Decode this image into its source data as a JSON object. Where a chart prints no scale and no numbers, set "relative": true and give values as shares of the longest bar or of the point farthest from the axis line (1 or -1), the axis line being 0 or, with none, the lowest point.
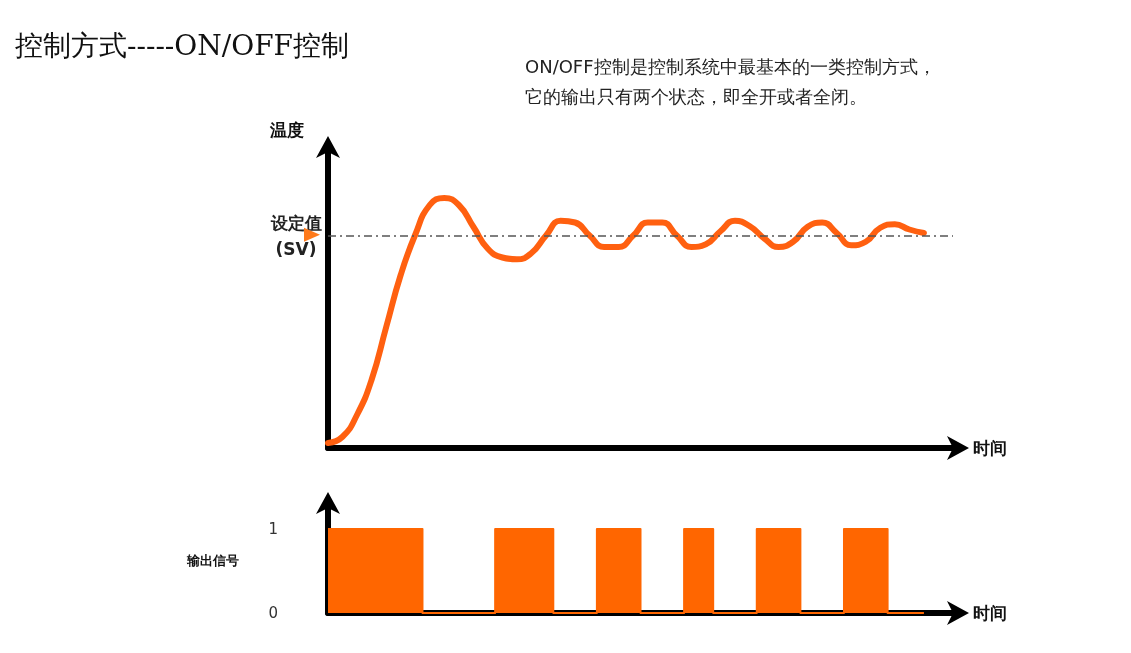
{
  "chart_data": [
    {
      "type": "line",
      "title": "控制方式-----ON/OFF控制",
      "subtitle": "ON/OFF控制是控制系统中最基本的一类控制方式，它的输出只有两个状态，即全开或者全闭。",
      "ylabel": "温度",
      "xlabel": "时间",
      "relative": true,
      "marker": "none",
      "grid": false,
      "categories": [
        null,
        null,
        null,
        null,
        null,
        null,
        null,
        null,
        null,
        null,
        null,
        null,
        null,
        null,
        null,
        null,
        null,
        null,
        null,
        null,
        null,
        null,
        null,
        null,
        null,
        null,
        null,
        null,
        null,
        null,
        null,
        null,
        null,
        null,
        null,
        null,
        null,
        null,
        null,
        null,
        null,
        null
      ],
      "series": [
        {
          "color": "#ff6010",
          "values": [
            0.02,
            0.045,
            0.133,
            0.273,
            0.483,
            0.692,
            0.853,
            0.972,
            1.0,
            0.972,
            0.885,
            0.797,
            0.762,
            0.755,
            0.78,
            0.85,
            0.909,
            0.902,
            0.85,
            0.804,
            0.804,
            0.85,
            0.902,
            0.902,
            0.85,
            0.804,
            0.815,
            0.867,
            0.909,
            0.888,
            0.839,
            0.804,
            0.825,
            0.885,
            0.902,
            0.86,
            0.811,
            0.825,
            0.881,
            0.895,
            0.874,
            0.86
          ]
        }
      ],
      "ref_lines": [
        {
          "axis": "y",
          "value": 0.853,
          "label": "设定值\n(SV)",
          "color": "#555555",
          "line_style": "dashed"
        }
      ]
    },
    {
      "type": "area",
      "ylabel": "输出信号",
      "xlabel": "时间",
      "grid": false,
      "ylim": [
        0,
        1
      ],
      "yticks": [
        0,
        1
      ],
      "categories": [
        null,
        null,
        null,
        null,
        null,
        null,
        null,
        null,
        null,
        null,
        null,
        null,
        null,
        null,
        null,
        null,
        null,
        null,
        null,
        null,
        null,
        null,
        null,
        null,
        null,
        null,
        null,
        null,
        null,
        null,
        null,
        null,
        null,
        null,
        null,
        null,
        null,
        null,
        null,
        null,
        null,
        null
      ],
      "series": [
        {
          "color": "#ff6600",
          "values": [
            1,
            1,
            1,
            1,
            1,
            1,
            1,
            0,
            0,
            0,
            0,
            0,
            1,
            1,
            1,
            1,
            0,
            0,
            0,
            1,
            1,
            1,
            0,
            0,
            0,
            1,
            1,
            0,
            0,
            0,
            1,
            1,
            1,
            0,
            0,
            0,
            1,
            1,
            1,
            0,
            0,
            0
          ]
        }
      ]
    }
  ]
}
